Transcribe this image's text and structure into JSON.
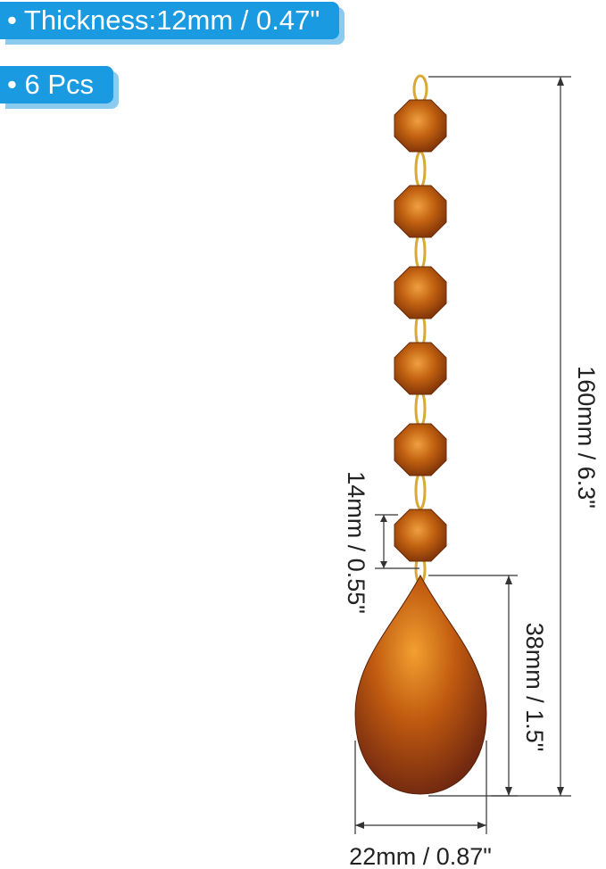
{
  "badges": [
    "• Thickness:12mm / 0.47\"",
    "• 6 Pcs"
  ],
  "dimensions": {
    "total_length": "160mm / 6.3\"",
    "bead_size": "14mm / 0.55\"",
    "pendant_height": "38mm / 1.5\"",
    "pendant_width": "22mm / 0.87\""
  }
}
